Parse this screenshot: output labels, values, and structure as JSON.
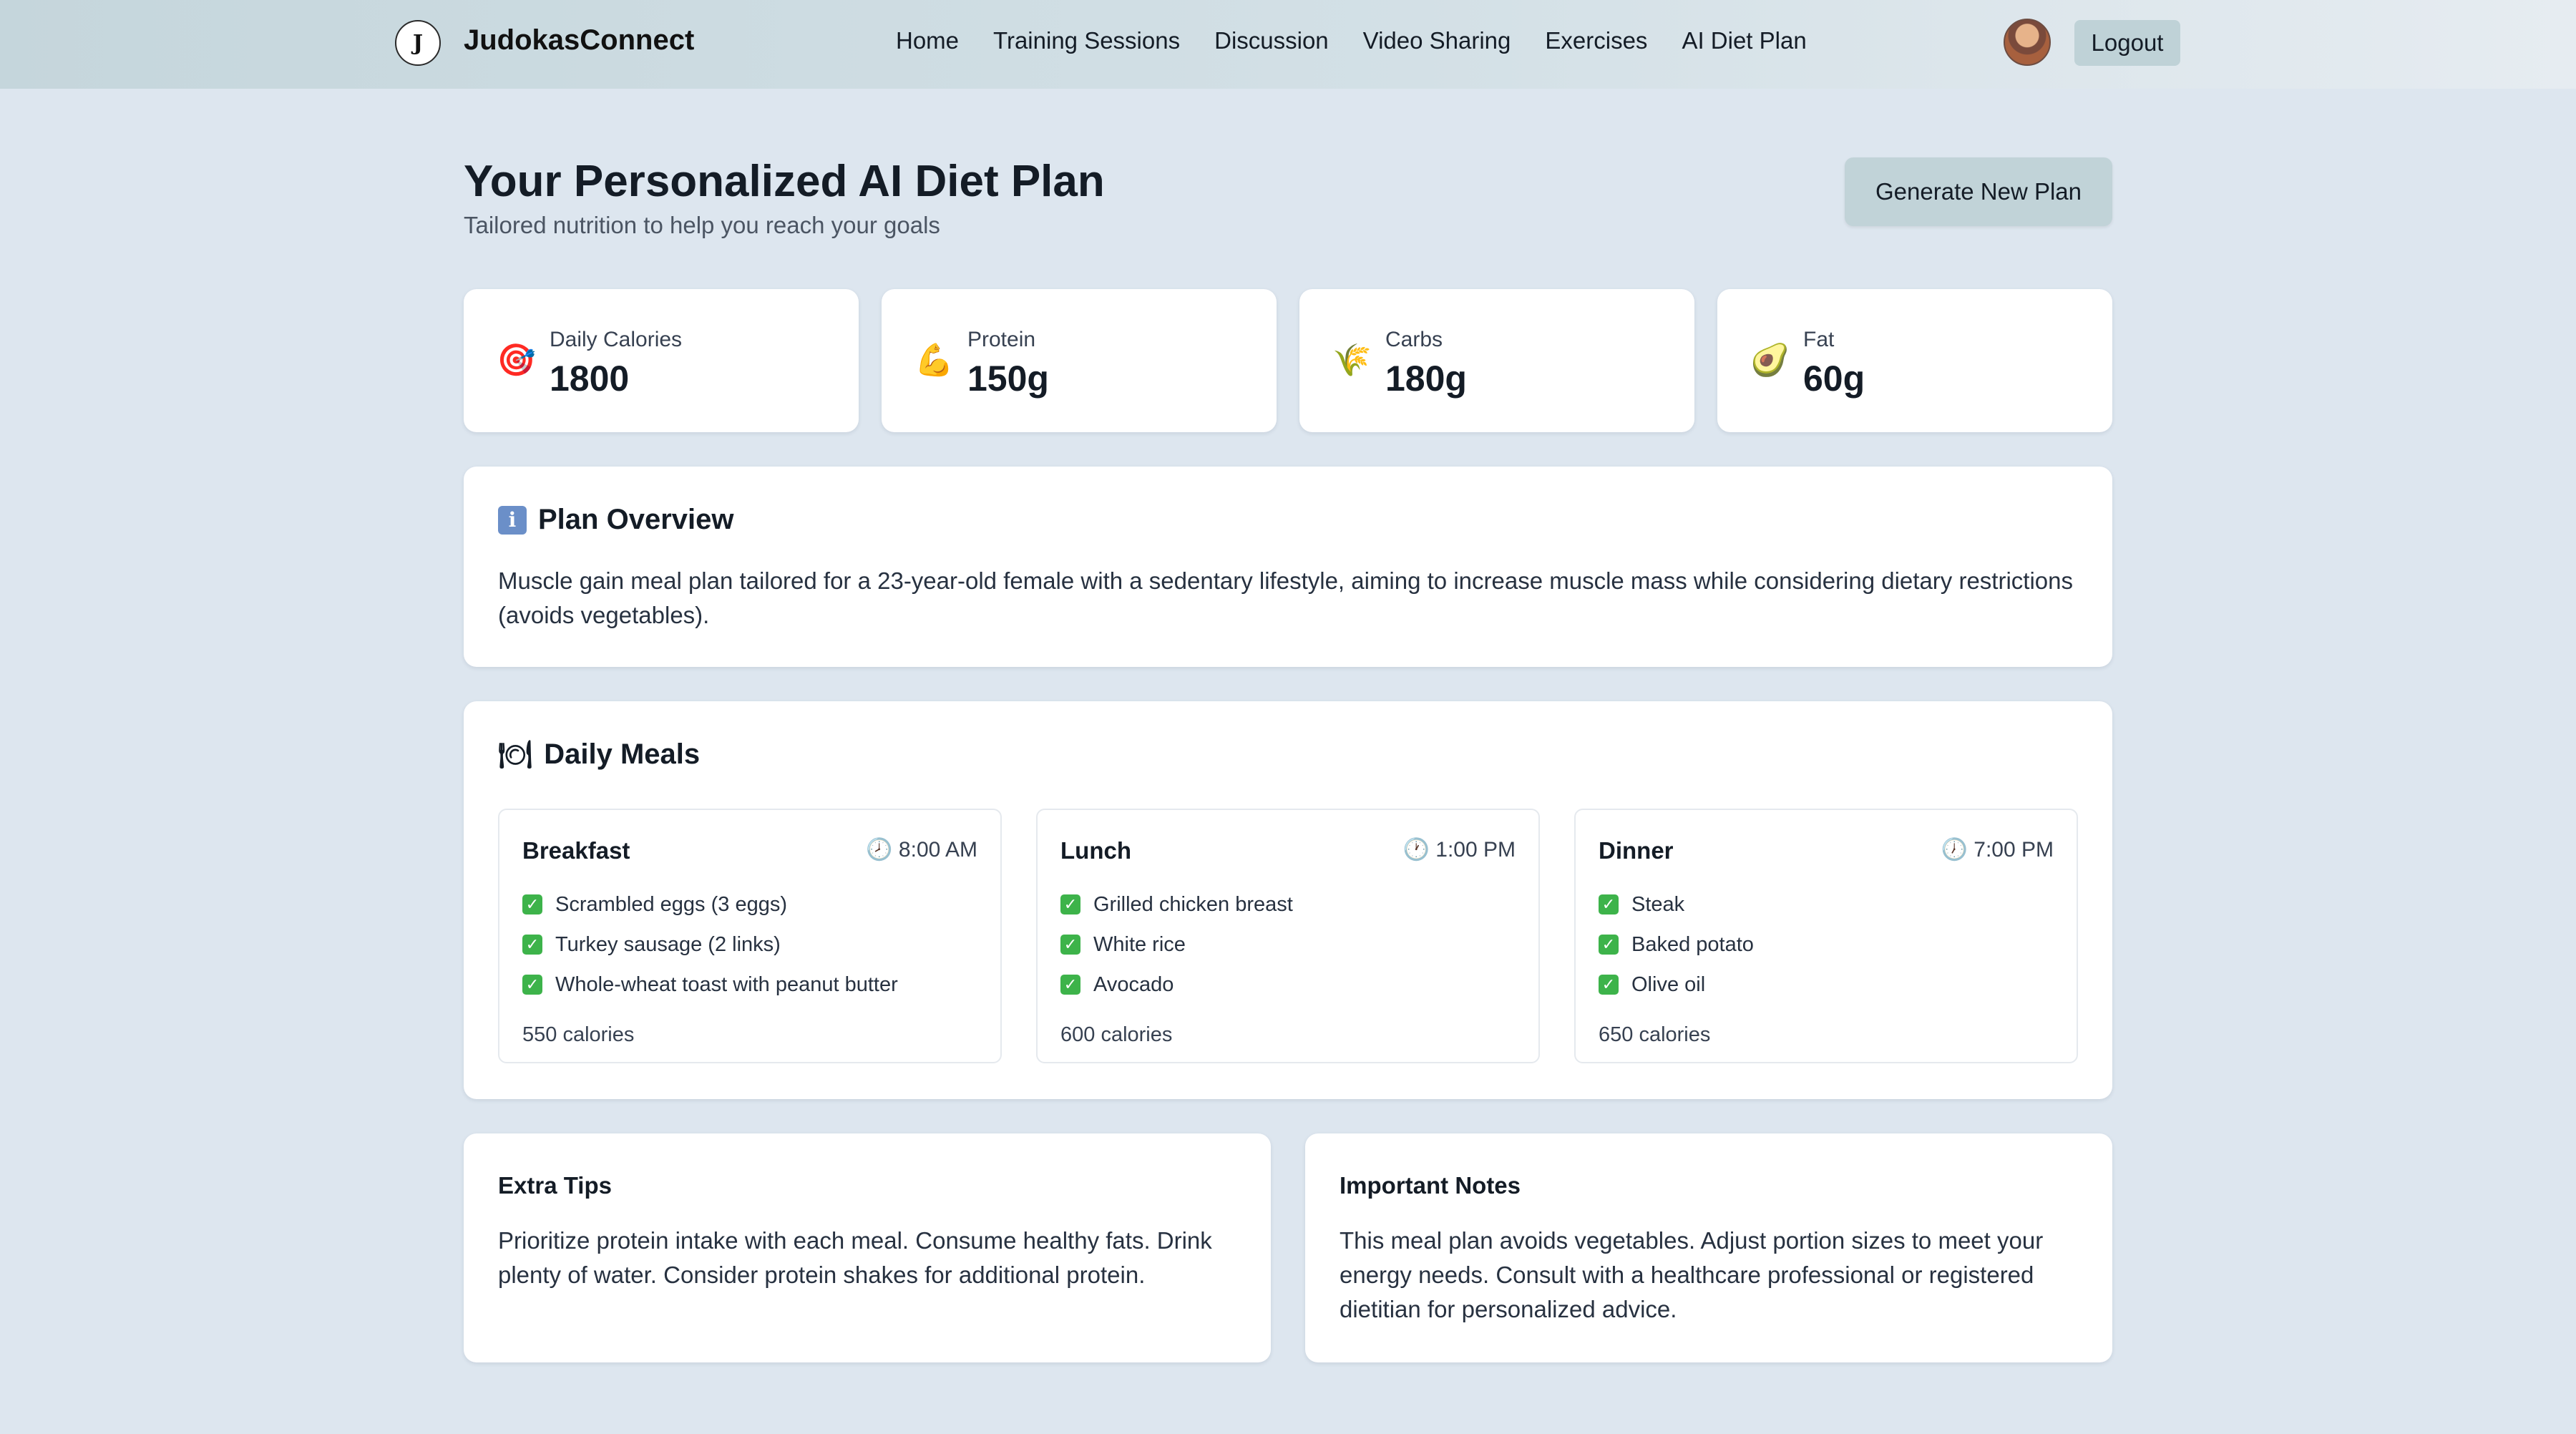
{
  "nav": {
    "logo_text": "J",
    "brand": "JudokasConnect",
    "links": [
      "Home",
      "Training Sessions",
      "Discussion",
      "Video Sharing",
      "Exercises",
      "AI Diet Plan"
    ],
    "logout": "Logout"
  },
  "header": {
    "title": "Your Personalized AI Diet Plan",
    "subtitle": "Tailored nutrition to help you reach your goals",
    "generate_button": "Generate New Plan"
  },
  "stats": [
    {
      "icon": "🎯",
      "label": "Daily Calories",
      "value": "1800"
    },
    {
      "icon": "💪",
      "label": "Protein",
      "value": "150g"
    },
    {
      "icon": "🌾",
      "label": "Carbs",
      "value": "180g"
    },
    {
      "icon": "🥑",
      "label": "Fat",
      "value": "60g"
    }
  ],
  "overview": {
    "title": "Plan Overview",
    "text": "Muscle gain meal plan tailored for a 23-year-old female with a sedentary lifestyle, aiming to increase muscle mass while considering dietary restrictions (avoids vegetables)."
  },
  "meals": {
    "title": "Daily Meals",
    "items": [
      {
        "name": "Breakfast",
        "time": "8:00 AM",
        "foods": [
          "Scrambled eggs (3 eggs)",
          "Turkey sausage (2 links)",
          "Whole-wheat toast with peanut butter"
        ],
        "calories": "550 calories"
      },
      {
        "name": "Lunch",
        "time": "1:00 PM",
        "foods": [
          "Grilled chicken breast",
          "White rice",
          "Avocado"
        ],
        "calories": "600 calories"
      },
      {
        "name": "Dinner",
        "time": "7:00 PM",
        "foods": [
          "Steak",
          "Baked potato",
          "Olive oil"
        ],
        "calories": "650 calories"
      }
    ]
  },
  "tips": {
    "title": "Extra Tips",
    "text": "Prioritize protein intake with each meal. Consume healthy fats. Drink plenty of water. Consider protein shakes for additional protein."
  },
  "notes": {
    "title": "Important Notes",
    "text": "This meal plan avoids vegetables. Adjust portion sizes to meet your energy needs. Consult with a healthcare professional or registered dietitian for personalized advice."
  }
}
